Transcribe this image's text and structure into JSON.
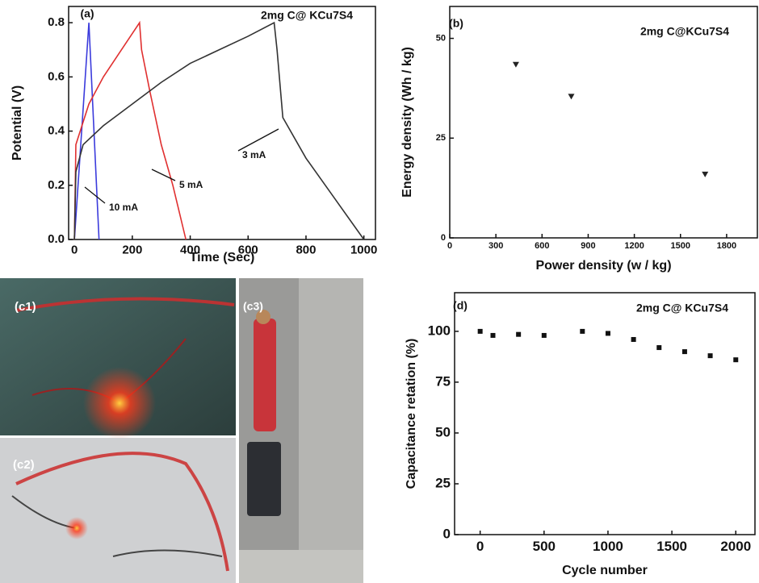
{
  "chart_data": [
    {
      "type": "line",
      "panel_label": "(a)",
      "annotation": "2mg C@ KCu7S4",
      "x_label": "Time (Sec)",
      "y_label": "Potential (V)",
      "xlim": [
        -20,
        1040
      ],
      "xticks": [
        0,
        200,
        400,
        600,
        800,
        1000
      ],
      "ylim": [
        0,
        0.86
      ],
      "yticks": [
        {
          "value": 0,
          "label": "0.0"
        },
        0.2,
        0.4,
        0.6,
        0.8
      ],
      "series": [
        {
          "name": "10 mA",
          "color": "#3b3bdc",
          "x": [
            0,
            50,
            85
          ],
          "values": [
            0,
            0.8,
            0
          ]
        },
        {
          "name": "5 mA",
          "color": "#e03030",
          "x": [
            0,
            5,
            50,
            100,
            150,
            200,
            225,
            232,
            260,
            300,
            340,
            385
          ],
          "values": [
            0,
            0.35,
            0.5,
            0.6,
            0.68,
            0.76,
            0.8,
            0.7,
            0.55,
            0.35,
            0.2,
            0
          ]
        },
        {
          "name": "3 mA",
          "color": "#333333",
          "x": [
            0,
            5,
            30,
            100,
            200,
            300,
            400,
            500,
            600,
            690,
            700,
            720,
            800,
            900,
            1000
          ],
          "values": [
            0,
            0.25,
            0.35,
            0.42,
            0.5,
            0.58,
            0.65,
            0.7,
            0.75,
            0.8,
            0.7,
            0.45,
            0.3,
            0.15,
            0
          ]
        }
      ]
    },
    {
      "type": "scatter",
      "panel_label": "(b)",
      "annotation": "2mg C@KCu7S4",
      "x_label": "Power density (w / kg)",
      "y_label": "Energy density (Wh / kg)",
      "xlim": [
        0,
        2000
      ],
      "xticks": [
        0,
        300,
        600,
        900,
        1200,
        1500,
        1800
      ],
      "ylim": [
        0,
        58
      ],
      "yticks": [
        0,
        25,
        50
      ],
      "marker": "triangle-down",
      "color": "#222222",
      "x": [
        430,
        790,
        1660
      ],
      "values": [
        43.5,
        35.5,
        16
      ]
    },
    {
      "type": "scatter",
      "panel_label": "(d)",
      "annotation": "2mg C@ KCu7S4",
      "x_label": "Cycle number",
      "y_label": "Capacitance retation (%)",
      "xlim": [
        -200,
        2150
      ],
      "xticks": [
        0,
        500,
        1000,
        1500,
        2000
      ],
      "ylim": [
        0,
        119
      ],
      "yticks": [
        0,
        25,
        50,
        75,
        100
      ],
      "marker": "square",
      "color": "#111111",
      "x": [
        0,
        100,
        300,
        500,
        800,
        1000,
        1200,
        1400,
        1600,
        1800,
        2000
      ],
      "values": [
        100,
        98,
        98.5,
        98,
        100,
        99,
        96,
        92,
        90,
        88,
        86
      ]
    }
  ],
  "images": {
    "c1": {
      "label": "(c1)"
    },
    "c2": {
      "label": "(c2)"
    },
    "c3": {
      "label": "(c3)"
    }
  }
}
